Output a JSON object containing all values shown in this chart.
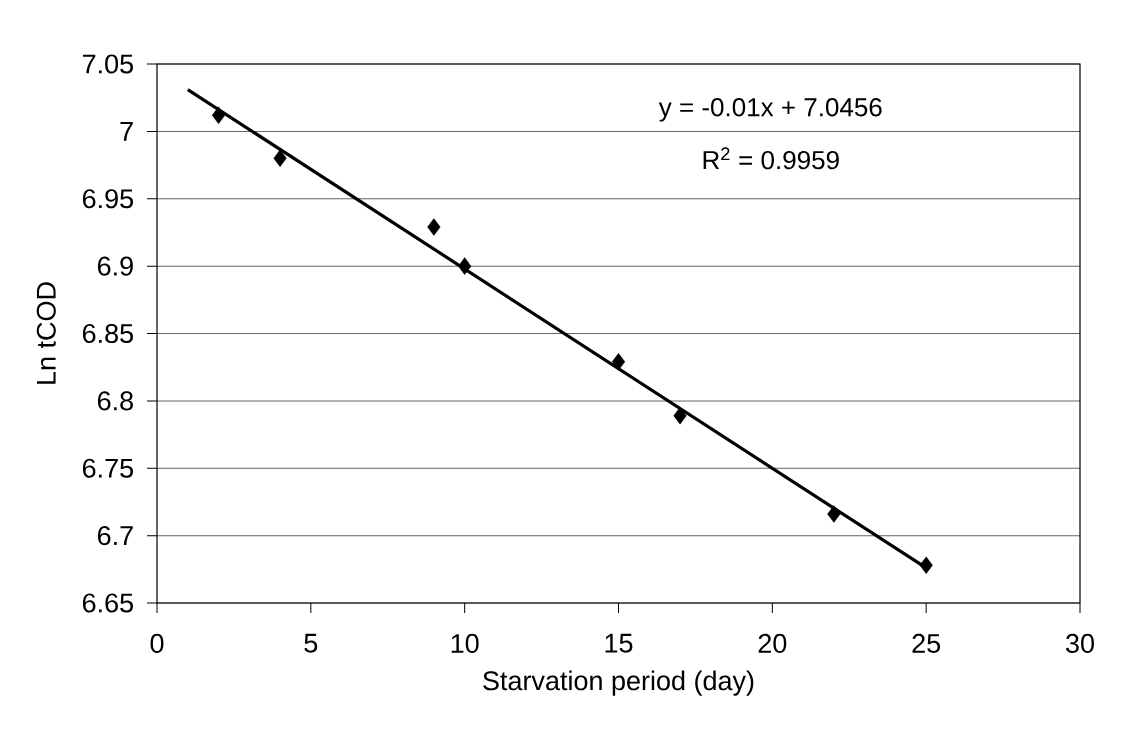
{
  "chart_data": {
    "type": "scatter",
    "xlabel": "Starvation period (day)",
    "ylabel": "Ln tCOD",
    "annotations": [
      "y = -0.01x + 7.0456",
      "R$^{2}$ = 0.9959"
    ],
    "x": [
      2,
      4,
      9,
      10,
      15,
      17,
      22,
      25
    ],
    "series": [
      {
        "color": "#000000",
        "marker": "diamond",
        "values": [
          7.012,
          6.98,
          6.929,
          6.9,
          6.829,
          6.789,
          6.716,
          6.678
        ]
      },
      {
        "type": "line",
        "color": "#000000",
        "marker": "none",
        "line_style": "solid",
        "x": [
          1,
          25
        ],
        "values": [
          7.031,
          6.676
        ]
      }
    ],
    "xlim": [
      0,
      30
    ],
    "xticks": [
      0,
      5,
      10,
      15,
      20,
      25,
      30
    ],
    "ylim": [
      6.65,
      7.05
    ],
    "yticks": [
      6.65,
      6.7,
      6.75,
      6.8,
      6.85,
      6.9,
      6.95,
      7,
      7.05
    ],
    "grid": "y"
  }
}
